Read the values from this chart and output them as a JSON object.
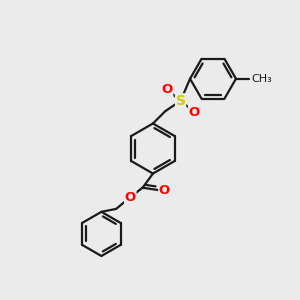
{
  "background_color": "#ebebeb",
  "bond_color": "#1a1a1a",
  "bond_lw": 1.6,
  "atom_colors": {
    "O": "#ff0000",
    "S": "#cccc00",
    "C": "#1a1a1a"
  },
  "figsize": [
    3.0,
    3.0
  ],
  "dpi": 100,
  "xlim": [
    0,
    10
  ],
  "ylim": [
    0,
    10
  ]
}
